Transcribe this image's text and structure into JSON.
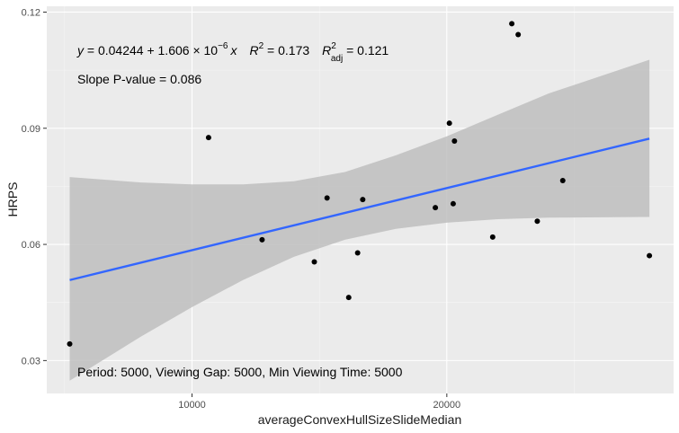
{
  "chart_data": {
    "type": "scatter",
    "xlabel": "averageConvexHullSizeSlideMedian",
    "ylabel": "HRPS",
    "xlim": [
      4300,
      28900
    ],
    "ylim": [
      0.0215,
      0.1215
    ],
    "x_ticks": [
      10000,
      20000
    ],
    "x_tick_labels": [
      "10000",
      "20000"
    ],
    "y_ticks": [
      0.03,
      0.06,
      0.09,
      0.12
    ],
    "y_tick_labels": [
      "0.03",
      "0.06",
      "0.09",
      "0.12"
    ],
    "x_minor_ticks": [
      5000,
      15000,
      25000
    ],
    "y_minor_ticks": [
      0.045,
      0.075,
      0.105
    ],
    "grid": true,
    "legend": "none",
    "points": [
      {
        "x": 5200,
        "y": 0.0343
      },
      {
        "x": 10650,
        "y": 0.0876
      },
      {
        "x": 12750,
        "y": 0.0612
      },
      {
        "x": 14800,
        "y": 0.0555
      },
      {
        "x": 15300,
        "y": 0.072
      },
      {
        "x": 16150,
        "y": 0.0463
      },
      {
        "x": 16500,
        "y": 0.0578
      },
      {
        "x": 16700,
        "y": 0.0716
      },
      {
        "x": 19550,
        "y": 0.0695
      },
      {
        "x": 20100,
        "y": 0.0913
      },
      {
        "x": 20250,
        "y": 0.0705
      },
      {
        "x": 20300,
        "y": 0.0867
      },
      {
        "x": 21800,
        "y": 0.0619
      },
      {
        "x": 22550,
        "y": 0.117
      },
      {
        "x": 22800,
        "y": 0.1142
      },
      {
        "x": 23550,
        "y": 0.066
      },
      {
        "x": 24550,
        "y": 0.0765
      },
      {
        "x": 27950,
        "y": 0.0571
      }
    ],
    "regression": {
      "intercept": 0.04244,
      "slope": 1.606e-06,
      "x_range": [
        5200,
        27950
      ],
      "line_color": "#3366FF",
      "ribbon_color": "#BEBEBE",
      "ci_lower": [
        {
          "x": 5200,
          "y": 0.0248
        },
        {
          "x": 8000,
          "y": 0.0362
        },
        {
          "x": 10000,
          "y": 0.0438
        },
        {
          "x": 12000,
          "y": 0.0508
        },
        {
          "x": 14000,
          "y": 0.0568
        },
        {
          "x": 16000,
          "y": 0.0612
        },
        {
          "x": 18000,
          "y": 0.064
        },
        {
          "x": 20000,
          "y": 0.0656
        },
        {
          "x": 22000,
          "y": 0.0665
        },
        {
          "x": 24000,
          "y": 0.0669
        },
        {
          "x": 27950,
          "y": 0.0671
        }
      ],
      "ci_upper": [
        {
          "x": 5200,
          "y": 0.0774
        },
        {
          "x": 8000,
          "y": 0.076
        },
        {
          "x": 10000,
          "y": 0.0755
        },
        {
          "x": 12000,
          "y": 0.0755
        },
        {
          "x": 14000,
          "y": 0.0763
        },
        {
          "x": 16000,
          "y": 0.0787
        },
        {
          "x": 18000,
          "y": 0.083
        },
        {
          "x": 20000,
          "y": 0.0879
        },
        {
          "x": 22000,
          "y": 0.0935
        },
        {
          "x": 24000,
          "y": 0.099
        },
        {
          "x": 27950,
          "y": 0.1077
        }
      ]
    },
    "annotations": {
      "equation": {
        "y_sym": "y",
        "eq_text": " = 0.04244 + 1.606 × 10",
        "exponent": "−6",
        "x_sym": "x",
        "r2_sym": "R",
        "r2_sup": "2",
        "r2_value": " = 0.173",
        "r2adj_sym": "R",
        "r2adj_sup": "2",
        "r2adj_sub": "adj",
        "r2adj_value": " = 0.121"
      },
      "slope_p": "Slope P-value = 0.086",
      "period": "Period: 5000, Viewing Gap: 5000, Min Viewing Time: 5000"
    }
  },
  "colors": {
    "panel_background": "#EBEBEB",
    "grid_major": "#FFFFFF",
    "grid_minor": "#F5F5F5",
    "point": "#000000"
  }
}
